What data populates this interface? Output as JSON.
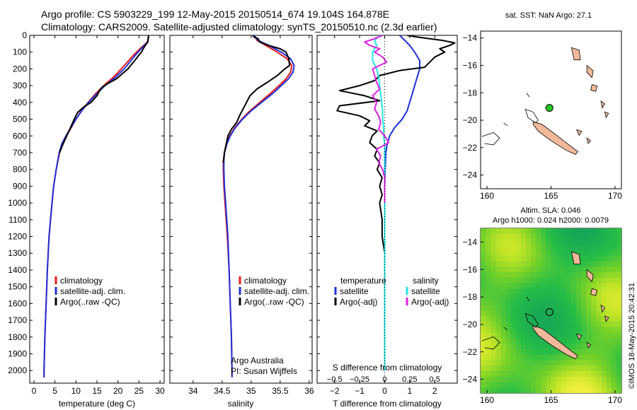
{
  "header": {
    "title_line1": "Argo profile: CS 5903229_199 12-May-2015 20150514_674 19.104S 164.878E",
    "title_line2": "Climatology: CARS2009. Satellite-adjusted climatology: synTS_20150510.nc (2.3d earlier)"
  },
  "colors": {
    "climatology": "#e41a1c",
    "satellite": "#1f2fd6",
    "argo": "#000000",
    "satellite_cyan": "#22e5e5",
    "argo_magenta": "#e020e0",
    "land": "#f2b89a",
    "marker": "#22c322"
  },
  "stamp": "©IMOS 18-May-2015 20:42:31",
  "chart_data": [
    {
      "type": "line",
      "id": "temperature",
      "xlabel": "temperature (deg C)",
      "ylabel": "",
      "xlim": [
        -1,
        31
      ],
      "ylim": [
        2075,
        0
      ],
      "xticks": [
        0,
        5,
        10,
        15,
        20,
        25,
        30
      ],
      "xtick_labels": [
        "0",
        "5",
        "10",
        "15",
        "20",
        "25",
        "30"
      ],
      "yticks": [
        0,
        100,
        200,
        300,
        400,
        500,
        600,
        700,
        800,
        900,
        1000,
        1100,
        1200,
        1300,
        1400,
        1500,
        1600,
        1700,
        1800,
        1900,
        2000
      ],
      "ytick_labels": [
        "0",
        "100",
        "200",
        "300",
        "400",
        "500",
        "600",
        "700",
        "800",
        "900",
        "1000",
        "1100",
        "1200",
        "1300",
        "1400",
        "1500",
        "1600",
        "1700",
        "1800",
        "1900",
        "2000"
      ],
      "legend": [
        "climatology",
        "satellite-adj. clim.",
        "Argo(..raw -QC)"
      ],
      "series": [
        {
          "name": "climatology",
          "depth": [
            0,
            40,
            80,
            120,
            160,
            200,
            250,
            300,
            350,
            400,
            450,
            500,
            550,
            600,
            650,
            700,
            800,
            900,
            1000,
            1200,
            1400,
            1600,
            1800,
            2000,
            2040
          ],
          "values": [
            27.3,
            27.0,
            25.2,
            23.6,
            22.2,
            20.8,
            18.9,
            16.6,
            14.6,
            12.9,
            11.3,
            10.0,
            8.9,
            7.7,
            6.7,
            6.1,
            5.3,
            4.7,
            4.3,
            3.6,
            3.2,
            2.9,
            2.6,
            2.4,
            2.4
          ]
        },
        {
          "name": "satellite-adj. clim.",
          "depth": [
            0,
            40,
            80,
            120,
            160,
            200,
            250,
            300,
            350,
            400,
            450,
            500,
            550,
            600,
            650,
            700,
            800,
            900,
            1000,
            1200,
            1400,
            1600,
            1800,
            2000,
            2040
          ],
          "values": [
            27.3,
            27.1,
            25.5,
            24.1,
            22.8,
            21.5,
            19.4,
            16.9,
            14.9,
            13.0,
            11.4,
            10.0,
            8.8,
            7.6,
            6.6,
            6.0,
            5.3,
            4.7,
            4.3,
            3.6,
            3.2,
            2.9,
            2.6,
            2.4,
            2.4
          ]
        },
        {
          "name": "Argo(..raw -QC)",
          "depth": [
            0,
            20,
            40,
            60,
            80,
            100,
            120,
            150,
            180,
            200,
            230,
            260,
            290,
            310,
            330,
            360,
            400,
            430,
            460,
            500,
            550,
            600,
            650,
            700
          ],
          "values": [
            27.3,
            27.2,
            27.1,
            26.5,
            26.0,
            25.6,
            24.9,
            24.0,
            23.0,
            22.4,
            21.0,
            19.6,
            17.4,
            16.2,
            15.6,
            15.0,
            13.6,
            11.7,
            10.4,
            9.6,
            8.7,
            7.8,
            6.9,
            6.1
          ]
        }
      ]
    },
    {
      "type": "line",
      "id": "salinity",
      "xlabel": "salinity",
      "xlim": [
        33.6,
        36.05
      ],
      "ylim": [
        2075,
        0
      ],
      "xticks": [
        34,
        34.5,
        35,
        35.5,
        36
      ],
      "xtick_labels": [
        "34",
        "34.5",
        "35",
        "35.5",
        "36"
      ],
      "legend": [
        "climatology",
        "satellite-adj. clim.",
        "Argo(..raw -QC)"
      ],
      "annotation_line1": "Argo Australia",
      "annotation_line2": "PI: Susan Wijffels",
      "series": [
        {
          "name": "climatology",
          "depth": [
            0,
            30,
            60,
            100,
            140,
            180,
            220,
            260,
            300,
            350,
            400,
            450,
            500,
            550,
            600,
            650,
            700,
            750,
            800,
            900,
            1000,
            1200,
            1400,
            1600,
            1800,
            2000,
            2040
          ],
          "values": [
            35.05,
            35.1,
            35.25,
            35.45,
            35.62,
            35.7,
            35.68,
            35.6,
            35.48,
            35.32,
            35.15,
            34.98,
            34.84,
            34.72,
            34.63,
            34.57,
            34.54,
            34.52,
            34.52,
            34.53,
            34.55,
            34.59,
            34.62,
            34.64,
            34.66,
            34.67,
            34.67
          ]
        },
        {
          "name": "satellite-adj. clim.",
          "depth": [
            0,
            30,
            60,
            100,
            140,
            180,
            220,
            260,
            300,
            350,
            400,
            450,
            500,
            550,
            600,
            650,
            700,
            750,
            800,
            900,
            1000,
            1200,
            1400,
            1600,
            1800,
            2000,
            2040
          ],
          "values": [
            35.05,
            35.12,
            35.3,
            35.52,
            35.68,
            35.74,
            35.72,
            35.64,
            35.52,
            35.36,
            35.18,
            35.0,
            34.85,
            34.73,
            34.64,
            34.58,
            34.54,
            34.53,
            34.53,
            34.54,
            34.56,
            34.6,
            34.62,
            34.64,
            34.66,
            34.67,
            34.67
          ]
        },
        {
          "name": "Argo(..raw -QC)",
          "depth": [
            0,
            10,
            20,
            40,
            60,
            80,
            100,
            140,
            180,
            200,
            240,
            280,
            320,
            360,
            400,
            440,
            480,
            520,
            560,
            600,
            650,
            700,
            760
          ],
          "values": [
            35.03,
            35.05,
            35.12,
            35.15,
            35.3,
            35.5,
            35.6,
            35.65,
            35.66,
            35.58,
            35.45,
            35.28,
            35.1,
            34.98,
            34.92,
            34.86,
            34.8,
            34.75,
            34.66,
            34.6,
            34.57,
            34.54,
            34.52
          ]
        }
      ]
    },
    {
      "type": "line",
      "id": "difference",
      "xlabel": "T difference from climatology",
      "xlabel_top": "S difference from climatology",
      "xlim": [
        -2.7,
        2.9
      ],
      "ylim": [
        2075,
        0
      ],
      "xticks": [
        -2,
        -1,
        0,
        1,
        2
      ],
      "xtick_labels": [
        "−2",
        "−1",
        "0",
        "1",
        "2"
      ],
      "s_ticks": [
        -0.5,
        -0.25,
        0,
        0.25,
        0.5
      ],
      "s_tick_labels": [
        "−0.5",
        "−0.25",
        "0",
        "0.25",
        "0.5"
      ],
      "legend_temperature_title": "temperature",
      "legend_salinity_title": "salinity",
      "legend_temperature": [
        "satellite",
        "Argo(-adj)"
      ],
      "legend_salinity": [
        "satellite",
        "Argo(-adj)"
      ],
      "series": [
        {
          "name": "temperature satellite",
          "depth": [
            0,
            30,
            60,
            100,
            150,
            200,
            250,
            300,
            350,
            400,
            450,
            500,
            550,
            600,
            650,
            700,
            800,
            900,
            1000,
            1200,
            1500,
            2000
          ],
          "values": [
            0.6,
            0.8,
            1.0,
            1.2,
            1.4,
            1.4,
            1.3,
            1.2,
            1.1,
            1.0,
            0.9,
            0.7,
            0.4,
            0.2,
            0.1,
            0.05,
            0.02,
            0.0,
            0.0,
            0.0,
            0.0,
            0.0
          ]
        },
        {
          "name": "temperature Argo(-adj)",
          "depth": [
            0,
            10,
            20,
            30,
            45,
            60,
            80,
            100,
            130,
            160,
            190,
            210,
            240,
            270,
            300,
            330,
            360,
            390,
            420,
            450,
            480,
            510,
            540,
            570,
            600,
            640,
            680,
            720,
            760,
            800,
            850,
            900,
            950,
            1000,
            1100,
            1200,
            1300,
            1400
          ],
          "values": [
            0.9,
            1.3,
            1.8,
            2.3,
            2.8,
            2.6,
            2.2,
            2.4,
            2.0,
            1.8,
            1.6,
            0.6,
            -0.2,
            -0.4,
            -1.0,
            -1.8,
            -0.8,
            -0.2,
            -1.8,
            -1.9,
            -1.0,
            -0.6,
            -0.8,
            -0.3,
            -0.5,
            -0.6,
            -0.3,
            -0.4,
            -0.2,
            -0.3,
            -0.1,
            -0.2,
            -0.1,
            -0.2,
            -0.1,
            -0.1,
            0.0,
            0.0
          ]
        },
        {
          "name": "salinity satellite",
          "depth": [
            0,
            30,
            60,
            100,
            150,
            200,
            250,
            300,
            350,
            400,
            450,
            500,
            550,
            600,
            650,
            700,
            800,
            1000,
            1500,
            2000
          ],
          "values": [
            -0.05,
            -0.1,
            -0.08,
            -0.12,
            -0.12,
            -0.08,
            -0.06,
            -0.05,
            -0.04,
            -0.03,
            -0.02,
            -0.02,
            -0.01,
            -0.01,
            0.0,
            0.0,
            0.0,
            0.0,
            0.0,
            0.0
          ]
        },
        {
          "name": "salinity Argo(-adj)",
          "depth": [
            0,
            20,
            40,
            60,
            80,
            100,
            130,
            160,
            200,
            240,
            280,
            320,
            360,
            400,
            440,
            480,
            520,
            560,
            600,
            640,
            680,
            720,
            760,
            800,
            850,
            900,
            1000
          ],
          "values": [
            -0.02,
            -0.1,
            -0.2,
            -0.15,
            -0.05,
            -0.1,
            -0.02,
            0.02,
            -0.12,
            -0.1,
            -0.08,
            -0.05,
            -0.12,
            -0.08,
            -0.1,
            -0.06,
            -0.04,
            -0.06,
            0.0,
            0.04,
            -0.08,
            -0.04,
            -0.06,
            -0.02,
            0.0,
            0.0,
            0.0
          ]
        }
      ]
    },
    {
      "type": "map",
      "id": "sst-map",
      "title": "sat. SST: NaN Argo: 27.1",
      "xlim": [
        159.5,
        170.5
      ],
      "ylim": [
        -25,
        -13.5
      ],
      "xticks": [
        160,
        165,
        170
      ],
      "xtick_labels": [
        "160",
        "165",
        "170"
      ],
      "yticks": [
        -14,
        -16,
        -18,
        -20,
        -22,
        -24
      ],
      "ytick_labels": [
        "−14",
        "−16",
        "−18",
        "−20",
        "−22",
        "−24"
      ],
      "profile_location": {
        "lon": 164.878,
        "lat": -19.104
      }
    },
    {
      "type": "heatmap",
      "id": "sla-map",
      "title_line1": "Altim. SLA: 0.046",
      "title_line2": "Argo h1000: 0.024 h2000: 0.0079",
      "xlim": [
        159.5,
        170.5
      ],
      "ylim": [
        -25,
        -13
      ],
      "xticks": [
        160,
        165,
        170
      ],
      "xtick_labels": [
        "160",
        "165",
        "170"
      ],
      "yticks": [
        -14,
        -16,
        -18,
        -20,
        -22,
        -24
      ],
      "ytick_labels": [
        "−14",
        "−16",
        "−18",
        "−20",
        "−22",
        "−24"
      ],
      "profile_location": {
        "lon": 164.878,
        "lat": -19.104
      }
    }
  ]
}
